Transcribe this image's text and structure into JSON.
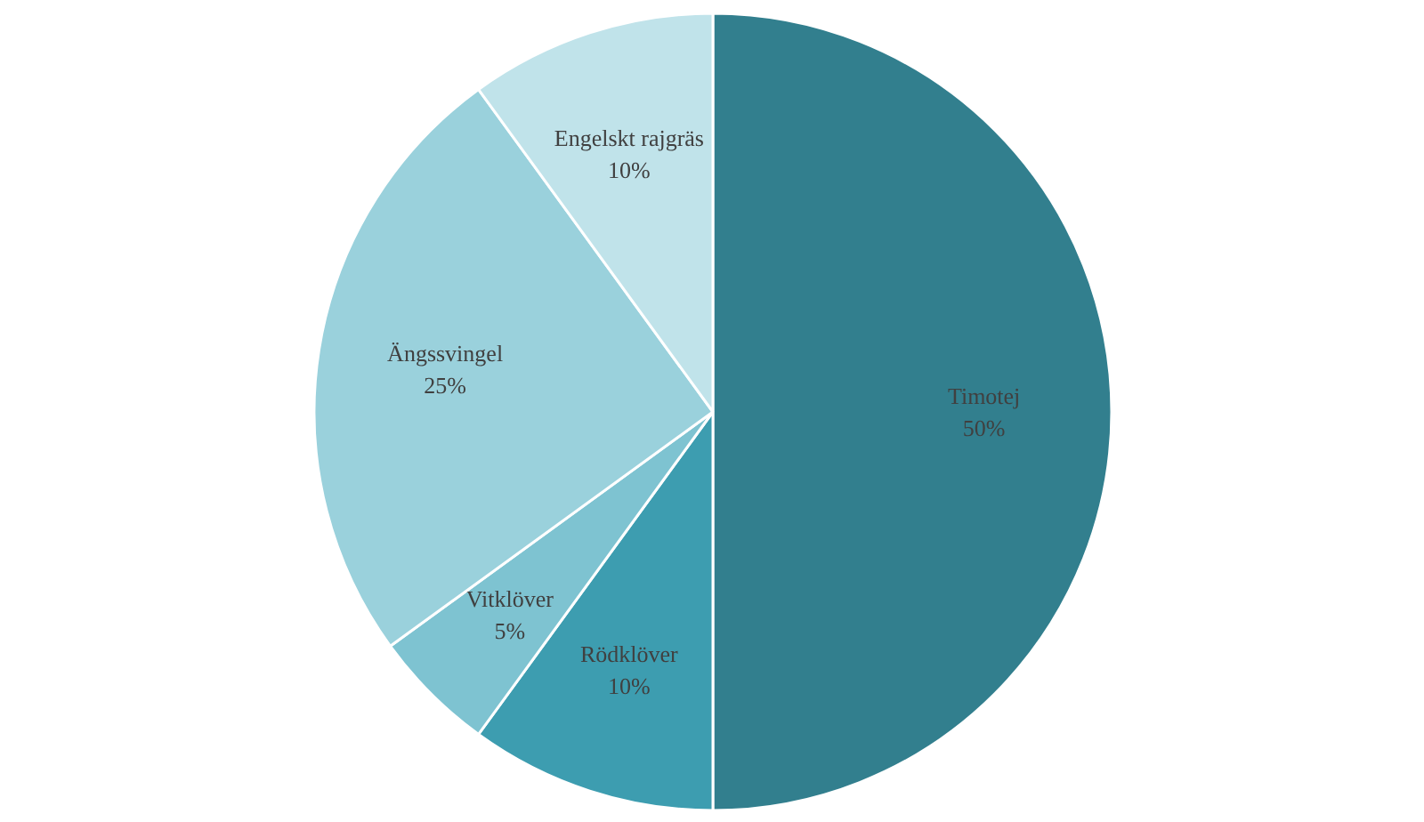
{
  "chart_data": {
    "type": "pie",
    "categories": [
      "Timotej",
      "Rödklöver",
      "Vitklöver",
      "Ängssvingel",
      "Engelskt rajgräs"
    ],
    "values": [
      50,
      10,
      5,
      25,
      10
    ],
    "value_labels": [
      "50%",
      "10%",
      "5%",
      "25%",
      "10%"
    ],
    "colors": [
      "#327f8e",
      "#3d9db0",
      "#7ec3d1",
      "#9ad1dc",
      "#c0e3ea"
    ],
    "legend": false
  }
}
